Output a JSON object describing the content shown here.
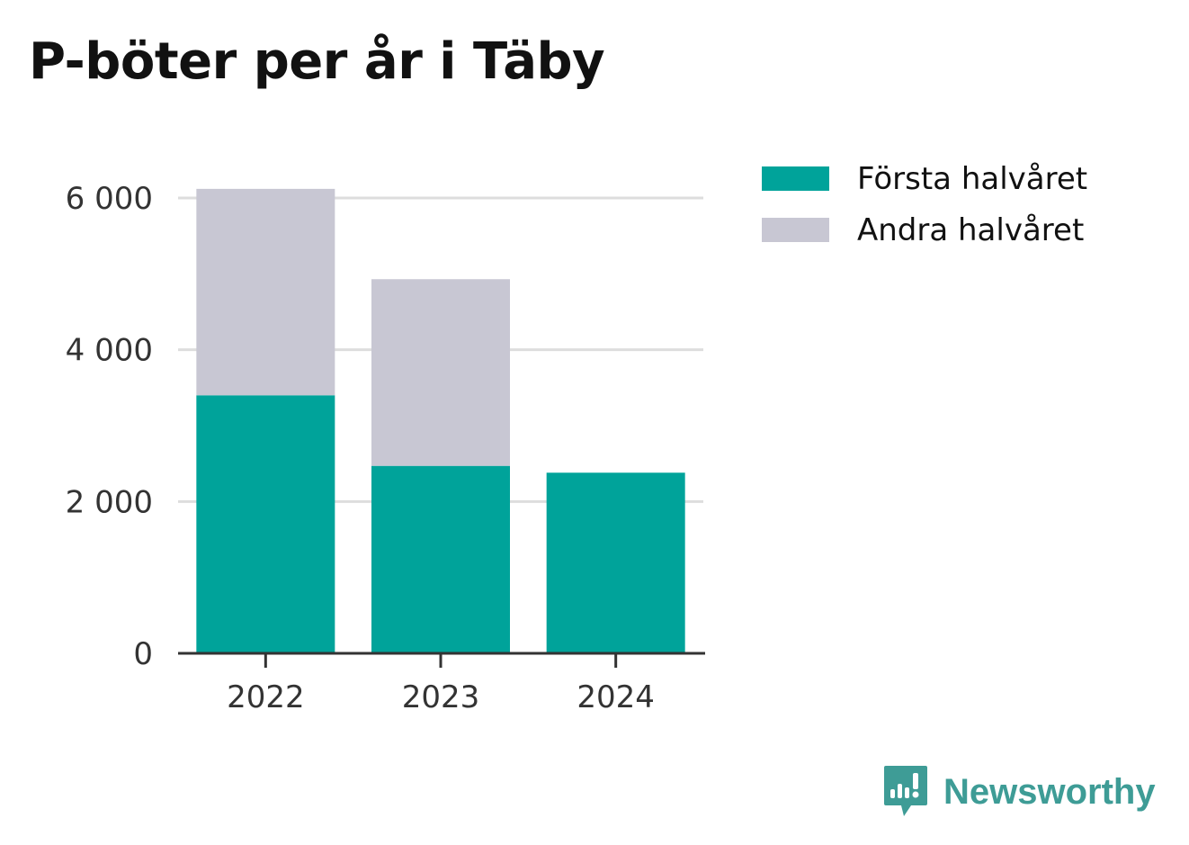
{
  "chart_data": {
    "type": "bar",
    "stacked": true,
    "title": "P-böter per år i Täby",
    "categories": [
      "2022",
      "2023",
      "2024"
    ],
    "series": [
      {
        "name": "Första halvåret",
        "color": "#00a39a",
        "values": [
          3400,
          2470,
          2380
        ]
      },
      {
        "name": "Andra halvåret",
        "color": "#c8c7d3",
        "values": [
          2720,
          2460,
          0
        ]
      }
    ],
    "yticks": [
      0,
      2000,
      4000,
      6000
    ],
    "ytick_labels": [
      "0",
      "2 000",
      "4 000",
      "6 000"
    ],
    "ylim": [
      0,
      6000
    ],
    "xlabel": "",
    "ylabel": "",
    "grid": true,
    "legend_position": "top-right"
  },
  "brand": {
    "name": "Newsworthy",
    "icon": "newsworthy-logo-icon",
    "color": "#3e9c96"
  },
  "colors": {
    "grid": "#dddddd",
    "axis": "#333333",
    "tick_text": "#333333"
  }
}
